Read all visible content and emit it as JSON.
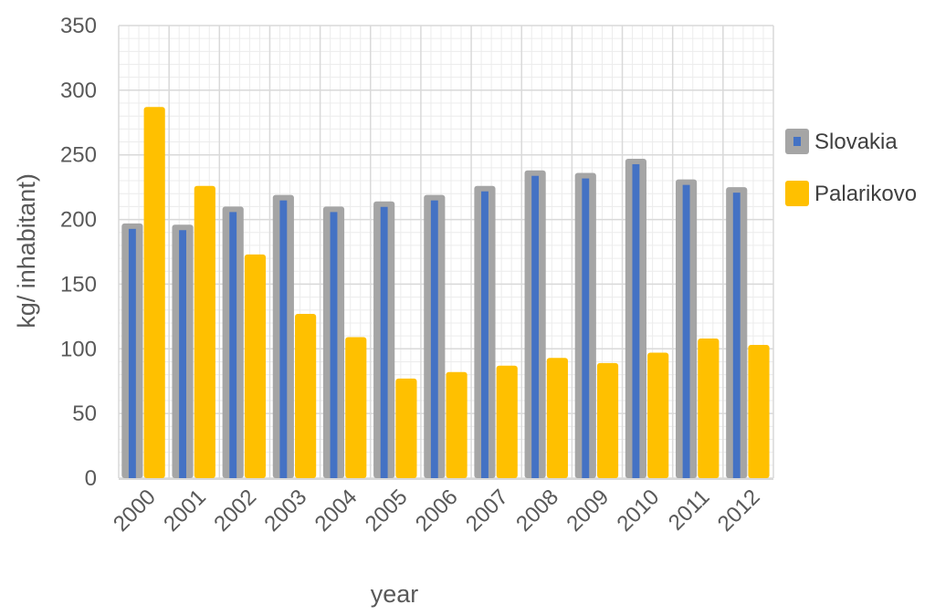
{
  "chart_data": {
    "type": "bar",
    "title": "",
    "xlabel": "year",
    "ylabel": "kg/ inhabitant)",
    "ylim": [
      0,
      350
    ],
    "yticks": [
      0,
      50,
      100,
      150,
      200,
      250,
      300,
      350
    ],
    "grid": true,
    "legend_position": "right",
    "categories": [
      "2000",
      "2001",
      "2002",
      "2003",
      "2004",
      "2005",
      "2006",
      "2007",
      "2008",
      "2009",
      "2010",
      "2011",
      "2012"
    ],
    "series": [
      {
        "name": "Slovakia",
        "values": [
          197,
          196,
          210,
          219,
          210,
          214,
          219,
          226,
          238,
          236,
          247,
          231,
          225
        ],
        "color_outer": "#a5a5a5",
        "color_inner": "#4472c4"
      },
      {
        "name": "Palarikovo",
        "values": [
          287,
          226,
          173,
          127,
          109,
          77,
          82,
          87,
          93,
          89,
          97,
          108,
          103
        ],
        "color": "#ffc000"
      }
    ]
  }
}
